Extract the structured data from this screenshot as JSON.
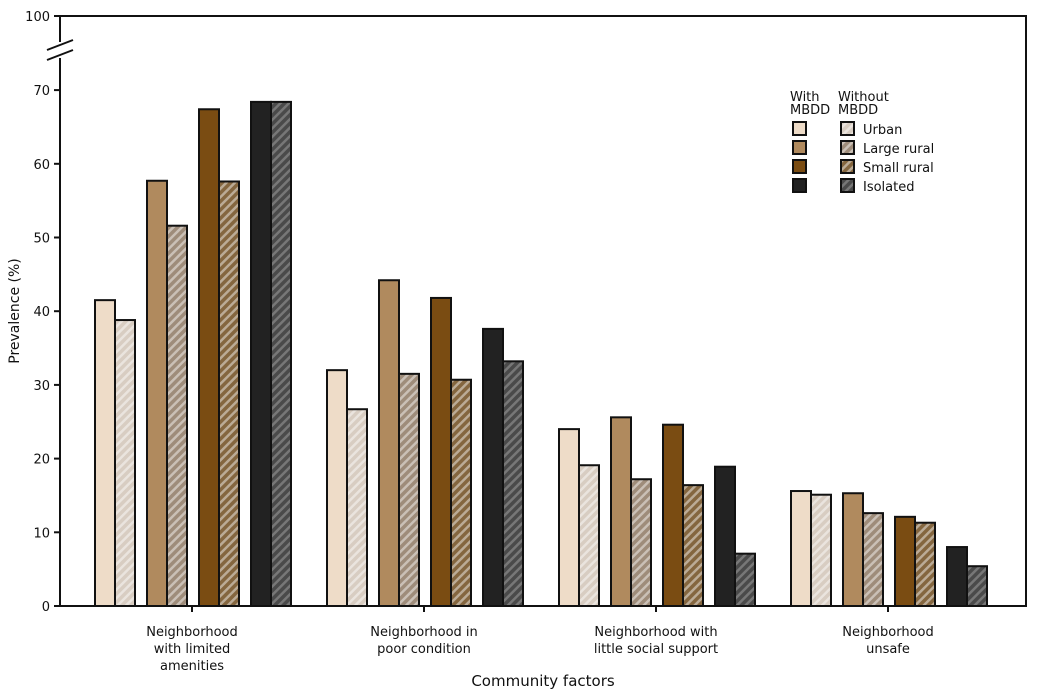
{
  "chart_data": {
    "type": "bar",
    "xlabel": "Community factors",
    "ylabel": "Prevalence (%)",
    "ylim": [
      0,
      100
    ],
    "axis_break": [
      70,
      100
    ],
    "yticks": [
      0,
      10,
      20,
      30,
      40,
      50,
      60,
      70,
      100
    ],
    "categories": [
      [
        "Neighborhood",
        "with limited",
        "amenities"
      ],
      [
        "Neighborhood in",
        "poor condition"
      ],
      [
        "Neighborhood with",
        "little social support"
      ],
      [
        "Neighborhood",
        "unsafe"
      ]
    ],
    "legend": {
      "header_with": [
        "With",
        "MBDD"
      ],
      "header_without": [
        "Without",
        "MBDD"
      ],
      "placement": "top-right"
    },
    "series": [
      {
        "name": "Urban",
        "with": [
          41.5,
          32.0,
          24.0,
          15.6
        ],
        "without": [
          38.8,
          26.7,
          19.1,
          15.1
        ],
        "color": "#eedcc8",
        "hatch_color": "#d8cdc2"
      },
      {
        "name": "Large rural",
        "with": [
          57.7,
          44.2,
          25.6,
          15.3
        ],
        "without": [
          51.6,
          31.5,
          17.2,
          12.6
        ],
        "color": "#b08a5e",
        "hatch_color": "#9e8c7a"
      },
      {
        "name": "Small rural",
        "with": [
          67.4,
          41.8,
          24.6,
          12.1
        ],
        "without": [
          57.6,
          30.7,
          16.4,
          11.3
        ],
        "color": "#7a4c12",
        "hatch_color": "#84663f"
      },
      {
        "name": "Isolated",
        "with": [
          68.4,
          37.6,
          18.9,
          8.0
        ],
        "without": [
          68.4,
          33.2,
          7.1,
          5.4
        ],
        "color": "#222222",
        "hatch_color": "#4a4a4a"
      }
    ]
  }
}
